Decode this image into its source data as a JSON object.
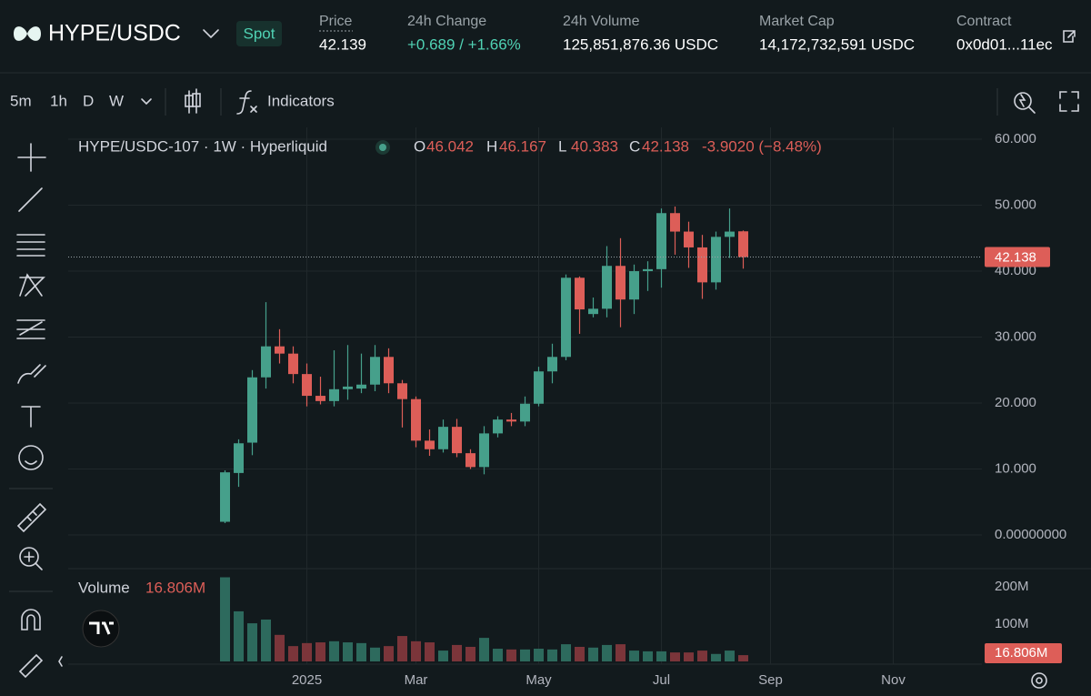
{
  "header": {
    "pair": "HYPE/USDC",
    "badge": "Spot",
    "stats": [
      {
        "label": "Price",
        "value": "42.139"
      },
      {
        "label": "24h Change",
        "value": "+0.689 / +1.66%"
      },
      {
        "label": "24h Volume",
        "value": "125,851,876.36 USDC"
      },
      {
        "label": "Market Cap",
        "value": "14,172,732,591 USDC"
      },
      {
        "label": "Contract",
        "value": "0x0d01...11ec"
      }
    ]
  },
  "toolbar": {
    "intervals": [
      "5m",
      "1h",
      "D",
      "W"
    ],
    "indicators": "Indicators"
  },
  "chart_data": {
    "type": "candlestick",
    "title": "HYPE/USDC-107 · 1W · Hyperliquid",
    "ohlc_letters": [
      "O",
      "H",
      "L",
      "C"
    ],
    "change_label": "-3.9020 (−8.48%)",
    "volume_title": "Volume",
    "volume_label": "16.806M",
    "up_color": "#46a08b",
    "down_color": "#dd5e58",
    "volume_up_color": "#2d6a5d",
    "volume_down_color": "#7b353a",
    "open": [
      2,
      9.4,
      14,
      23.9,
      28.6,
      27.5,
      24.4,
      21.1,
      20.3,
      22.1,
      22.2,
      22.8,
      27,
      23,
      20.6,
      14.3,
      13,
      16.4,
      12.4,
      10.3,
      15.4,
      17.5,
      17.2,
      19.9,
      24.8,
      27,
      39,
      33.5,
      34.3,
      40.8,
      35.7,
      40,
      40.3,
      48.8,
      46,
      43.6,
      38.3,
      45.2,
      46.042
    ],
    "high": [
      9.8,
      14.5,
      25,
      35.3,
      31.2,
      28.6,
      26,
      24,
      28,
      28.8,
      27.5,
      28.8,
      28.3,
      23.5,
      21,
      16,
      17.5,
      17.6,
      13,
      16.5,
      18,
      18.5,
      21,
      25.5,
      29,
      39.5,
      39.2,
      36,
      43.8,
      45,
      41,
      41.5,
      49.5,
      49.8,
      47.5,
      45.5,
      46,
      49.5,
      46.167
    ],
    "low": [
      1.8,
      7.3,
      12.1,
      22.2,
      26,
      23,
      19.5,
      19.8,
      19.5,
      20.5,
      21.5,
      21.8,
      21.5,
      16.3,
      13.3,
      12,
      12.5,
      11.8,
      10,
      9.2,
      14.8,
      16.5,
      16.5,
      19.5,
      23,
      26.5,
      30.5,
      33,
      33,
      31.5,
      33.5,
      37,
      37.5,
      42.5,
      40.5,
      35.8,
      37.2,
      42,
      40.383
    ],
    "close": [
      9.5,
      13.9,
      23.9,
      28.6,
      27.5,
      24.4,
      21.1,
      20.3,
      22.1,
      22.5,
      22.8,
      27,
      23,
      20.6,
      14.3,
      13,
      16.4,
      12.4,
      10.3,
      15.4,
      17.5,
      17.2,
      19.9,
      24.8,
      27,
      39,
      34.2,
      34.3,
      40.8,
      35.7,
      40,
      40.3,
      48.8,
      46,
      43.6,
      38.3,
      45.2,
      46,
      42.138
    ],
    "volume": [
      225,
      134,
      102,
      112,
      71,
      41,
      49,
      51,
      54,
      51,
      49,
      37,
      41,
      68,
      54,
      51,
      29,
      44,
      39,
      63,
      34,
      32,
      32,
      34,
      32,
      46,
      39,
      37,
      44,
      46,
      29,
      27,
      27,
      24,
      24,
      29,
      20,
      29,
      16.806
    ],
    "xlim": [
      -11.5,
      55.5
    ],
    "xticks": [
      {
        "value": 6,
        "label": "2025"
      },
      {
        "value": 14,
        "label": "Mar"
      },
      {
        "value": 23,
        "label": "May"
      },
      {
        "value": 32,
        "label": "Jul"
      },
      {
        "value": 40,
        "label": "Sep"
      },
      {
        "value": 49,
        "label": "Nov"
      }
    ],
    "ylim": [
      -5.1,
      61.8
    ],
    "yticks": [
      {
        "value": 0,
        "label": "0.00000000"
      },
      {
        "value": 10,
        "label": "10.000"
      },
      {
        "value": 20,
        "label": "20.000"
      },
      {
        "value": 30,
        "label": "30.000"
      },
      {
        "value": 40,
        "label": "40.000"
      },
      {
        "value": 50,
        "label": "50.000"
      },
      {
        "value": 60,
        "label": "60.000"
      }
    ],
    "volume_ylim": [
      0,
      236
    ],
    "volume_ticks": [
      {
        "value": 100,
        "label": "100M"
      },
      {
        "value": 200,
        "label": "200M"
      }
    ],
    "grid": true
  }
}
